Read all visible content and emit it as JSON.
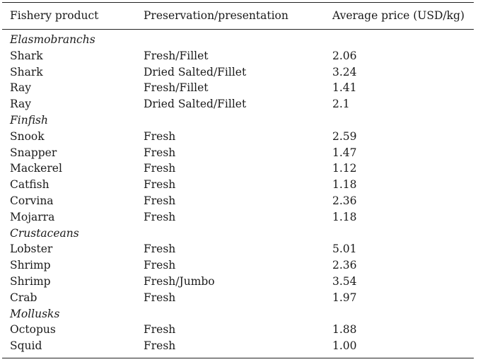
{
  "headers": {
    "product": "Fishery product",
    "preservation": "Preservation/presentation",
    "price": "Average price (USD/kg)"
  },
  "rows": [
    {
      "type": "category",
      "product": "Elasmobranchs",
      "preservation": "",
      "price": ""
    },
    {
      "type": "item",
      "product": "Shark",
      "preservation": "Fresh/Fillet",
      "price": "2.06"
    },
    {
      "type": "item",
      "product": "Shark",
      "preservation": "Dried Salted/Fillet",
      "price": "3.24"
    },
    {
      "type": "item",
      "product": "Ray",
      "preservation": "Fresh/Fillet",
      "price": "1.41"
    },
    {
      "type": "item",
      "product": "Ray",
      "preservation": "Dried Salted/Fillet",
      "price": "2.1"
    },
    {
      "type": "category",
      "product": "Finfish",
      "preservation": "",
      "price": ""
    },
    {
      "type": "item",
      "product": "Snook",
      "preservation": "Fresh",
      "price": "2.59"
    },
    {
      "type": "item",
      "product": "Snapper",
      "preservation": "Fresh",
      "price": "1.47"
    },
    {
      "type": "item",
      "product": "Mackerel",
      "preservation": "Fresh",
      "price": "1.12"
    },
    {
      "type": "item",
      "product": "Catfish",
      "preservation": "Fresh",
      "price": "1.18"
    },
    {
      "type": "item",
      "product": "Corvina",
      "preservation": "Fresh",
      "price": "2.36"
    },
    {
      "type": "item",
      "product": "Mojarra",
      "preservation": "Fresh",
      "price": "1.18"
    },
    {
      "type": "category",
      "product": "Crustaceans",
      "preservation": "",
      "price": ""
    },
    {
      "type": "item",
      "product": "Lobster",
      "preservation": "Fresh",
      "price": "5.01"
    },
    {
      "type": "item",
      "product": "Shrimp",
      "preservation": "Fresh",
      "price": "2.36"
    },
    {
      "type": "item",
      "product": "Shrimp",
      "preservation": "Fresh/Jumbo",
      "price": "3.54"
    },
    {
      "type": "item",
      "product": "Crab",
      "preservation": "Fresh",
      "price": "1.97"
    },
    {
      "type": "category",
      "product": "Mollusks",
      "preservation": "",
      "price": ""
    },
    {
      "type": "item",
      "product": "Octopus",
      "preservation": "Fresh",
      "price": "1.88"
    },
    {
      "type": "item",
      "product": "Squid",
      "preservation": "Fresh",
      "price": "1.00"
    }
  ]
}
